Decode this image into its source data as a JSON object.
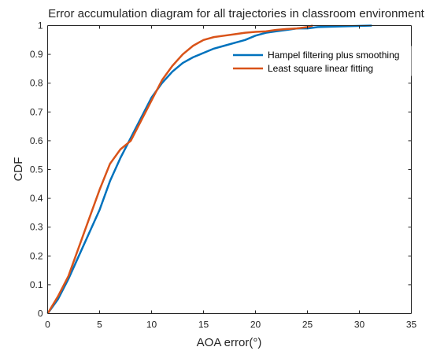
{
  "chart_data": {
    "type": "line",
    "title": "Error accumulation diagram for all trajectories in classroom environment",
    "xlabel": "AOA error(°)",
    "ylabel": "CDF",
    "xlim": [
      0,
      35
    ],
    "ylim": [
      0,
      1
    ],
    "xticks": [
      "0",
      "5",
      "10",
      "15",
      "20",
      "25",
      "30",
      "35"
    ],
    "yticks": [
      "0",
      "0.1",
      "0.2",
      "0.3",
      "0.4",
      "0.5",
      "0.6",
      "0.7",
      "0.8",
      "0.9",
      "1"
    ],
    "grid": false,
    "legend_position": "top-right",
    "series": [
      {
        "name": "Hampel filtering plus smoothing",
        "color": "#0072BD",
        "points": [
          [
            0,
            0
          ],
          [
            1,
            0.05
          ],
          [
            2,
            0.12
          ],
          [
            3,
            0.2
          ],
          [
            4,
            0.28
          ],
          [
            5,
            0.36
          ],
          [
            6,
            0.46
          ],
          [
            7,
            0.54
          ],
          [
            8,
            0.61
          ],
          [
            9,
            0.68
          ],
          [
            10,
            0.75
          ],
          [
            11,
            0.8
          ],
          [
            12,
            0.84
          ],
          [
            13,
            0.87
          ],
          [
            14,
            0.89
          ],
          [
            15,
            0.905
          ],
          [
            16,
            0.92
          ],
          [
            17,
            0.93
          ],
          [
            18,
            0.94
          ],
          [
            19,
            0.95
          ],
          [
            20,
            0.965
          ],
          [
            21,
            0.975
          ],
          [
            22,
            0.98
          ],
          [
            23,
            0.985
          ],
          [
            24,
            0.99
          ],
          [
            25,
            0.99
          ],
          [
            26,
            0.995
          ],
          [
            28,
            0.997
          ],
          [
            31.2,
            1.0
          ]
        ]
      },
      {
        "name": "Least square linear fitting",
        "color": "#D95319",
        "points": [
          [
            0,
            0
          ],
          [
            1,
            0.06
          ],
          [
            2,
            0.13
          ],
          [
            3,
            0.23
          ],
          [
            4,
            0.33
          ],
          [
            5,
            0.43
          ],
          [
            6,
            0.52
          ],
          [
            7,
            0.57
          ],
          [
            8,
            0.6
          ],
          [
            9,
            0.67
          ],
          [
            10,
            0.74
          ],
          [
            11,
            0.81
          ],
          [
            12,
            0.86
          ],
          [
            13,
            0.9
          ],
          [
            14,
            0.93
          ],
          [
            15,
            0.95
          ],
          [
            16,
            0.96
          ],
          [
            17,
            0.965
          ],
          [
            18,
            0.97
          ],
          [
            19,
            0.975
          ],
          [
            20,
            0.978
          ],
          [
            21,
            0.98
          ],
          [
            22,
            0.985
          ],
          [
            23,
            0.988
          ],
          [
            24,
            0.99
          ],
          [
            25,
            0.995
          ],
          [
            25.5,
            1.0
          ]
        ]
      }
    ]
  }
}
